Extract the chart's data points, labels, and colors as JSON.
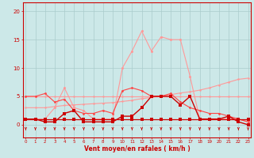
{
  "x": [
    0,
    1,
    2,
    3,
    4,
    5,
    6,
    7,
    8,
    9,
    10,
    11,
    12,
    13,
    14,
    15,
    16,
    17,
    18,
    19,
    20,
    21,
    22,
    23
  ],
  "series_flat1": [
    1,
    1,
    1,
    1,
    1,
    1,
    1,
    1,
    1,
    1,
    1,
    1,
    1,
    1,
    1,
    1,
    1,
    1,
    1,
    1,
    1,
    1,
    1,
    1
  ],
  "series_flat5": [
    5,
    5,
    5,
    5,
    5,
    5,
    5,
    5,
    5,
    5,
    5,
    5,
    5,
    5,
    5,
    5,
    5,
    5,
    5,
    5,
    5,
    5,
    5,
    5
  ],
  "series_rising": [
    3,
    3,
    3,
    3.2,
    3.4,
    3.5,
    3.6,
    3.7,
    3.8,
    3.9,
    4.1,
    4.3,
    4.6,
    4.8,
    5.1,
    5.3,
    5.6,
    5.8,
    6.1,
    6.5,
    7.0,
    7.5,
    8.0,
    8.2
  ],
  "series_moyen": [
    1,
    1,
    0.5,
    0.5,
    2,
    2.5,
    0.5,
    0.5,
    0.5,
    0.5,
    1.5,
    1.5,
    3,
    5,
    5,
    5,
    3.5,
    5,
    1,
    1,
    1,
    1.5,
    0.5,
    0
  ],
  "series_rafales": [
    1,
    1,
    1,
    3,
    6.5,
    3,
    2.5,
    1,
    1,
    1,
    10,
    13,
    16.5,
    13,
    15.5,
    15,
    15,
    8.5,
    1,
    1,
    1,
    1,
    1,
    0.5
  ],
  "series_mid": [
    5,
    5,
    5.5,
    4,
    4.5,
    2.5,
    2,
    2,
    2.5,
    2,
    6,
    6.5,
    6,
    5,
    5,
    5.5,
    4,
    3,
    2.5,
    2,
    2,
    1.5,
    1,
    0.5
  ],
  "bg_color": "#cce8e8",
  "grid_color": "#aacccc",
  "color_dark_red": "#cc0000",
  "color_light_pink": "#ff9999",
  "color_mid_red": "#ff4444",
  "xlabel": "Vent moyen/en rafales ( km/h )",
  "yticks": [
    0,
    5,
    10,
    15,
    20
  ],
  "xlim": [
    -0.3,
    23.3
  ],
  "ylim": [
    -2.2,
    21.5
  ]
}
